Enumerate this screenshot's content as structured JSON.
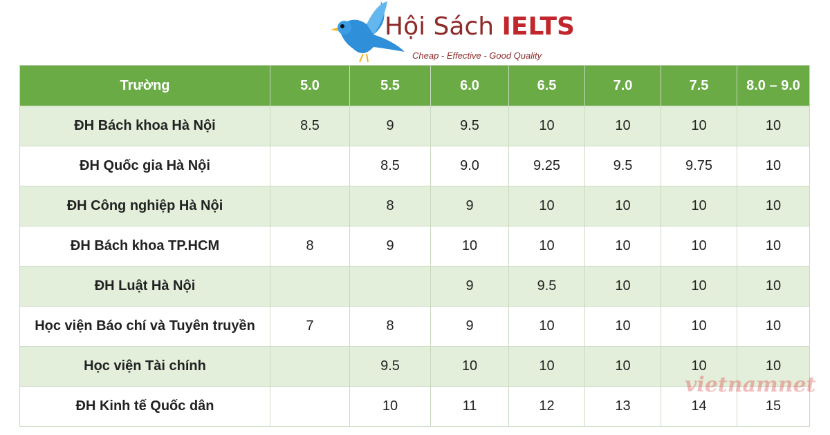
{
  "header": {
    "brand_a": "Hội Sách",
    "brand_b": "IELTS",
    "tagline": "Cheap - Effective - Good Quality"
  },
  "watermark": "vietnamnet",
  "table": {
    "columns": [
      "Trường",
      "5.0",
      "5.5",
      "6.0",
      "6.5",
      "7.0",
      "7.5",
      "8.0 – 9.0"
    ],
    "rows": [
      [
        "ĐH Bách khoa Hà Nội",
        "8.5",
        "9",
        "9.5",
        "10",
        "10",
        "10",
        "10"
      ],
      [
        "ĐH Quốc gia Hà Nội",
        null,
        "8.5",
        "9.0",
        "9.25",
        "9.5",
        "9.75",
        "10"
      ],
      [
        "ĐH Công nghiệp Hà Nội",
        null,
        "8",
        "9",
        "10",
        "10",
        "10",
        "10"
      ],
      [
        "ĐH Bách khoa TP.HCM",
        "8",
        "9",
        "10",
        "10",
        "10",
        "10",
        "10"
      ],
      [
        "ĐH Luật Hà Nội",
        null,
        null,
        "9",
        "9.5",
        "10",
        "10",
        "10"
      ],
      [
        "Học viện Báo chí và Tuyên truyền",
        "7",
        "8",
        "9",
        "10",
        "10",
        "10",
        "10"
      ],
      [
        "Học viện Tài chính",
        null,
        "9.5",
        "10",
        "10",
        "10",
        "10",
        "10"
      ],
      [
        "ĐH Kinh tế Quốc dân",
        null,
        "10",
        "11",
        "12",
        "13",
        "14",
        "15"
      ]
    ]
  }
}
